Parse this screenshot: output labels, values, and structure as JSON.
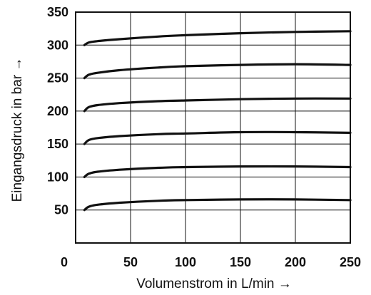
{
  "chart_data": {
    "type": "line",
    "title": "",
    "xlabel": "Volumenstrom in L/min →",
    "ylabel": "Eingangsdruck in bar →",
    "xlim": [
      0,
      250
    ],
    "ylim": [
      0,
      350
    ],
    "x_ticks": [
      0,
      50,
      100,
      150,
      200,
      250
    ],
    "y_ticks": [
      50,
      100,
      150,
      200,
      250,
      300,
      350
    ],
    "grid": true,
    "x": [
      8,
      12,
      20,
      40,
      75,
      100,
      150,
      200,
      250
    ],
    "series": [
      {
        "values": [
          50,
          55,
          58,
          61,
          64,
          65,
          66,
          66,
          65
        ]
      },
      {
        "values": [
          100,
          105,
          108,
          111,
          114,
          115,
          116,
          116,
          115
        ]
      },
      {
        "values": [
          150,
          156,
          159,
          162,
          165,
          166,
          168,
          168,
          167
        ]
      },
      {
        "values": [
          200,
          206,
          209,
          212,
          215,
          216,
          218,
          219,
          219
        ]
      },
      {
        "values": [
          250,
          255,
          258,
          262,
          266,
          268,
          270,
          271,
          270
        ]
      },
      {
        "values": [
          300,
          304,
          306,
          309,
          313,
          315,
          318,
          320,
          321
        ]
      }
    ]
  }
}
